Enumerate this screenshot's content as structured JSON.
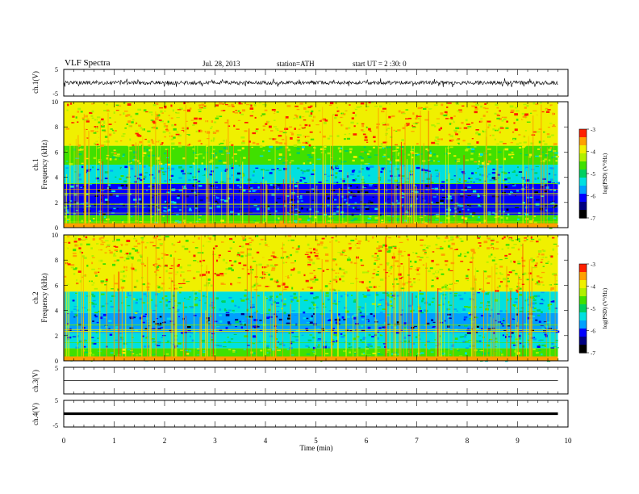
{
  "header": {
    "title": "VLF  Spectra",
    "date": "Jul.  28, 2013",
    "station": "station=ATH",
    "start": "start  UT  =   2  :30: 0"
  },
  "chart_data": [
    {
      "type": "line",
      "panel": "ch1-waveform",
      "ylabel": "ch.1(V)",
      "ylim": [
        -5,
        5
      ],
      "y_ticks": [
        "5",
        "-5"
      ],
      "xlim": [
        0,
        10
      ],
      "data_extent_x": [
        0,
        9.8
      ],
      "series": [
        {
          "values_summary": "dense noise around 0 V, amplitude about ±1 V with spikes to about ±2 V",
          "color": "#000000"
        }
      ]
    },
    {
      "type": "heatmap",
      "panel": "ch1-spectrogram",
      "ylabel_lines": [
        "ch.1",
        "Frequency  (kHz)"
      ],
      "ylim": [
        0,
        10
      ],
      "y_ticks": [
        "0",
        "2",
        "4",
        "6",
        "8",
        "10"
      ],
      "xlim": [
        0,
        10
      ],
      "data_extent_x": [
        0,
        9.8
      ],
      "colorbar": {
        "label": "log(PSD) (V²/Hz)",
        "range": [
          -7,
          -3
        ],
        "ticks": [
          "-3",
          "-4",
          "-5",
          "-6",
          "-7"
        ]
      },
      "bands": [
        {
          "from": 0.0,
          "to": 1.0,
          "level": -4.5
        },
        {
          "from": 1.0,
          "to": 3.5,
          "level": -6.1
        },
        {
          "from": 3.5,
          "to": 5.0,
          "level": -5.5
        },
        {
          "from": 5.0,
          "to": 6.5,
          "level": -4.5
        },
        {
          "from": 6.5,
          "to": 10.0,
          "level": -3.8
        }
      ],
      "note": "many vertical broadband sferic streaks across the full frequency range"
    },
    {
      "type": "heatmap",
      "panel": "ch2-spectrogram",
      "ylabel_lines": [
        "ch.2",
        "Frequency  (kHz)"
      ],
      "ylim": [
        0,
        10
      ],
      "y_ticks": [
        "0",
        "2",
        "4",
        "6",
        "8",
        "10"
      ],
      "xlim": [
        0,
        10
      ],
      "data_extent_x": [
        0,
        9.8
      ],
      "colorbar": {
        "label": "log(PSD) (V²/Hz)",
        "range": [
          -7,
          -3
        ],
        "ticks": [
          "-3",
          "-4",
          "-5",
          "-6",
          "-7"
        ]
      },
      "bands": [
        {
          "from": 0.0,
          "to": 1.0,
          "level": -4.7
        },
        {
          "from": 1.0,
          "to": 2.2,
          "level": -5.4
        },
        {
          "from": 2.2,
          "to": 3.8,
          "level": -5.9
        },
        {
          "from": 3.8,
          "to": 5.5,
          "level": -5.2
        },
        {
          "from": 5.5,
          "to": 10.0,
          "level": -3.9
        }
      ],
      "note": "many vertical broadband sferic streaks across the full frequency range"
    },
    {
      "type": "line",
      "panel": "ch3-waveform",
      "ylabel": "ch.3(V)",
      "ylim": [
        -5,
        5
      ],
      "y_ticks": [
        "5",
        "-5"
      ],
      "xlim": [
        0,
        10
      ],
      "data_extent_x": [
        0,
        9.8
      ],
      "series": [
        {
          "values_summary": "nearly flat trace near 0 V",
          "level": 0,
          "color": "#000000"
        }
      ]
    },
    {
      "type": "line",
      "panel": "ch4-waveform",
      "ylabel": "ch.4(V)",
      "ylim": [
        -5,
        5
      ],
      "y_ticks": [
        "5",
        "-5"
      ],
      "xlim": [
        0,
        10
      ],
      "data_extent_x": [
        0,
        9.8
      ],
      "series": [
        {
          "values_summary": "thick flat trace near 0 V",
          "level": 0,
          "color": "#000000"
        }
      ]
    }
  ],
  "x_axis": {
    "xlabel": "Time  (min)",
    "tick_labels": [
      "0",
      "1",
      "2",
      "3",
      "4",
      "5",
      "6",
      "7",
      "8",
      "9",
      "10"
    ]
  },
  "colors": {
    "colormap": [
      "#000000",
      "#000080",
      "#0000ff",
      "#00a0ff",
      "#00e0e0",
      "#00d060",
      "#40e000",
      "#b0f000",
      "#f0f000",
      "#ffa000",
      "#ff2000",
      "#ffffff"
    ]
  }
}
